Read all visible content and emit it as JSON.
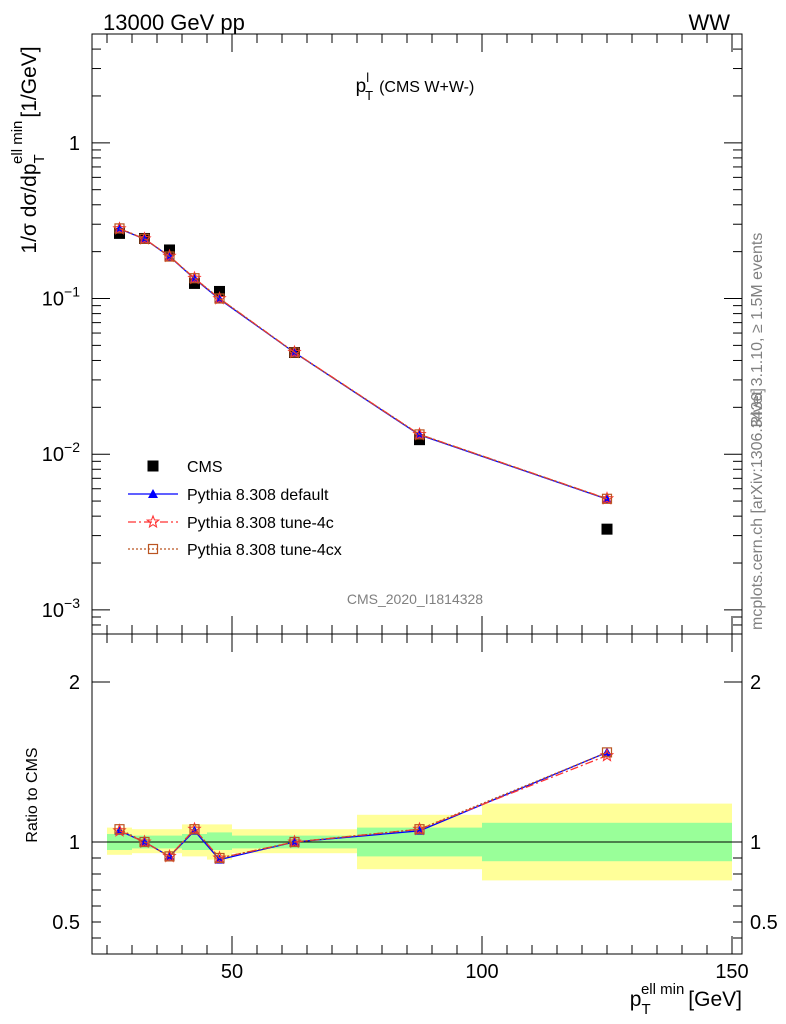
{
  "header": {
    "left_label": "13000 GeV pp",
    "right_label": "WW"
  },
  "side_labels": {
    "rivet": "Rivet 3.1.10, ≥ 1.5M events",
    "site": "mcplots.cern.ch [arXiv:1306.3436]"
  },
  "chart_data": [
    {
      "type": "line",
      "title": "p",
      "title_sup": "l",
      "title_sub": "T",
      "title_suffix": "(CMS W+W-)",
      "watermark": "CMS_2020_I1814328",
      "ylabel": "1/σ dσ/dp",
      "ylabel_sub": "T",
      "ylabel_sup": "ell min",
      "ylabel_unit": "[1/GeV]",
      "yscale": "log",
      "ylim": [
        0.0007,
        5
      ],
      "xlim": [
        22,
        152
      ],
      "ytick_labels": [
        {
          "v": 0.001,
          "base": "10",
          "exp": "−3"
        },
        {
          "v": 0.01,
          "base": "10",
          "exp": "−2"
        },
        {
          "v": 0.1,
          "base": "10",
          "exp": "−1"
        },
        {
          "v": 1,
          "base": "1",
          "exp": ""
        }
      ],
      "legend_position": "bottom-left",
      "series": [
        {
          "name": "CMS",
          "color": "#000000",
          "marker": "square",
          "x": [
            27.5,
            32.5,
            37.5,
            42.5,
            47.5,
            62.5,
            87.5,
            125
          ],
          "y": [
            0.262,
            0.243,
            0.205,
            0.125,
            0.111,
            0.045,
            0.0124,
            0.0033
          ]
        },
        {
          "name": "Pythia 8.308 default",
          "color": "#0000ff",
          "marker": "triangle",
          "line": "solid",
          "x": [
            27.5,
            32.5,
            37.5,
            42.5,
            47.5,
            62.5,
            87.5,
            125
          ],
          "y": [
            0.28,
            0.241,
            0.186,
            0.134,
            0.099,
            0.0449,
            0.0133,
            0.00515
          ]
        },
        {
          "name": "Pythia 8.308 tune-4c",
          "color": "#ff3333",
          "marker": "star",
          "line": "dashdot",
          "x": [
            27.5,
            32.5,
            37.5,
            42.5,
            47.5,
            62.5,
            87.5,
            125
          ],
          "y": [
            0.281,
            0.242,
            0.187,
            0.135,
            0.1,
            0.0451,
            0.0134,
            0.00518
          ]
        },
        {
          "name": "Pythia 8.308 tune-4cx",
          "color": "#bb5522",
          "marker": "open-square",
          "line": "dotted",
          "x": [
            27.5,
            32.5,
            37.5,
            42.5,
            47.5,
            62.5,
            87.5,
            125
          ],
          "y": [
            0.282,
            0.242,
            0.186,
            0.135,
            0.1,
            0.045,
            0.0134,
            0.00517
          ]
        }
      ]
    },
    {
      "type": "line",
      "ylabel": "Ratio to CMS",
      "xlabel": "p",
      "xlabel_sub": "T",
      "xlabel_sup": "ell min",
      "xlabel_unit": "[GeV]",
      "ylim": [
        0.3,
        2.3
      ],
      "xlim": [
        22,
        152
      ],
      "xticks": [
        50,
        100,
        150
      ],
      "yticks": [
        0.5,
        1,
        2
      ],
      "bands": [
        {
          "xlo": 25,
          "xhi": 30,
          "inner": [
            0.95,
            1.05
          ],
          "outer": [
            0.92,
            1.09
          ]
        },
        {
          "xlo": 30,
          "xhi": 35,
          "inner": [
            0.96,
            1.04
          ],
          "outer": [
            0.93,
            1.08
          ]
        },
        {
          "xlo": 35,
          "xhi": 40,
          "inner": [
            0.96,
            1.04
          ],
          "outer": [
            0.93,
            1.08
          ]
        },
        {
          "xlo": 40,
          "xhi": 45,
          "inner": [
            0.95,
            1.05
          ],
          "outer": [
            0.91,
            1.11
          ]
        },
        {
          "xlo": 45,
          "xhi": 50,
          "inner": [
            0.95,
            1.06
          ],
          "outer": [
            0.89,
            1.11
          ]
        },
        {
          "xlo": 50,
          "xhi": 75,
          "inner": [
            0.96,
            1.04
          ],
          "outer": [
            0.93,
            1.08
          ]
        },
        {
          "xlo": 75,
          "xhi": 100,
          "inner": [
            0.91,
            1.09
          ],
          "outer": [
            0.83,
            1.17
          ]
        },
        {
          "xlo": 100,
          "xhi": 150,
          "inner": [
            0.88,
            1.12
          ],
          "outer": [
            0.76,
            1.24
          ]
        }
      ],
      "series": [
        {
          "name": "Pythia 8.308 default",
          "color": "#0000ff",
          "marker": "triangle",
          "line": "solid",
          "x": [
            27.5,
            32.5,
            37.5,
            42.5,
            47.5,
            62.5,
            87.5,
            125
          ],
          "y": [
            1.07,
            1.0,
            0.91,
            1.07,
            0.89,
            1.0,
            1.07,
            1.56
          ]
        },
        {
          "name": "Pythia 8.308 tune-4c",
          "color": "#ff3333",
          "marker": "star",
          "line": "dashdot",
          "x": [
            27.5,
            32.5,
            37.5,
            42.5,
            47.5,
            62.5,
            87.5,
            125
          ],
          "y": [
            1.07,
            1.0,
            0.91,
            1.08,
            0.9,
            1.0,
            1.08,
            1.54
          ]
        },
        {
          "name": "Pythia 8.308 tune-4cx",
          "color": "#bb5522",
          "marker": "open-square",
          "line": "dotted",
          "x": [
            27.5,
            32.5,
            37.5,
            42.5,
            47.5,
            62.5,
            87.5,
            125
          ],
          "y": [
            1.08,
            1.0,
            0.91,
            1.08,
            0.9,
            1.0,
            1.08,
            1.56
          ]
        }
      ]
    }
  ]
}
